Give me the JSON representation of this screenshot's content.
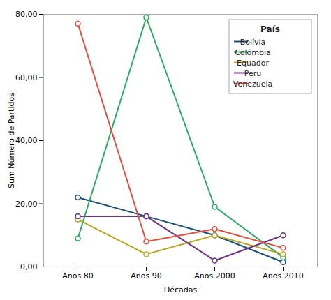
{
  "chart_data": {
    "type": "line",
    "categories": [
      "Anos 80",
      "Anos 90",
      "Anos 2000",
      "Anos 2010"
    ],
    "series": [
      {
        "name": "Bolívia",
        "color": "#1a5276",
        "marker": "circle",
        "values": [
          22,
          16,
          10,
          1.5
        ]
      },
      {
        "name": "Colômbia",
        "color": "#27ae60",
        "marker": "circle",
        "values": [
          9,
          79,
          19,
          3
        ]
      },
      {
        "name": "Equador",
        "color": "#b8a820",
        "marker": "circle",
        "values": [
          15,
          4,
          10,
          4
        ]
      },
      {
        "name": "Peru",
        "color": "#6c3483",
        "marker": "circle",
        "values": [
          16,
          16,
          2,
          10
        ]
      },
      {
        "name": "Venezuela",
        "color": "#e74c3c",
        "marker": "circle",
        "values": [
          77,
          8,
          12,
          6
        ]
      }
    ],
    "xlabel": "Décadas",
    "ylabel": "Sum Número de Partidos",
    "legend_title": "País",
    "ylim": [
      0,
      80
    ],
    "yticks": [
      {
        "value": 0,
        "label": "0,00"
      },
      {
        "value": 20,
        "label": "20,00"
      },
      {
        "value": 40,
        "label": "40,00"
      },
      {
        "value": 60,
        "label": "60,00"
      },
      {
        "value": 80,
        "label": "80,00"
      }
    ],
    "grid": false,
    "legend": "upper right"
  }
}
